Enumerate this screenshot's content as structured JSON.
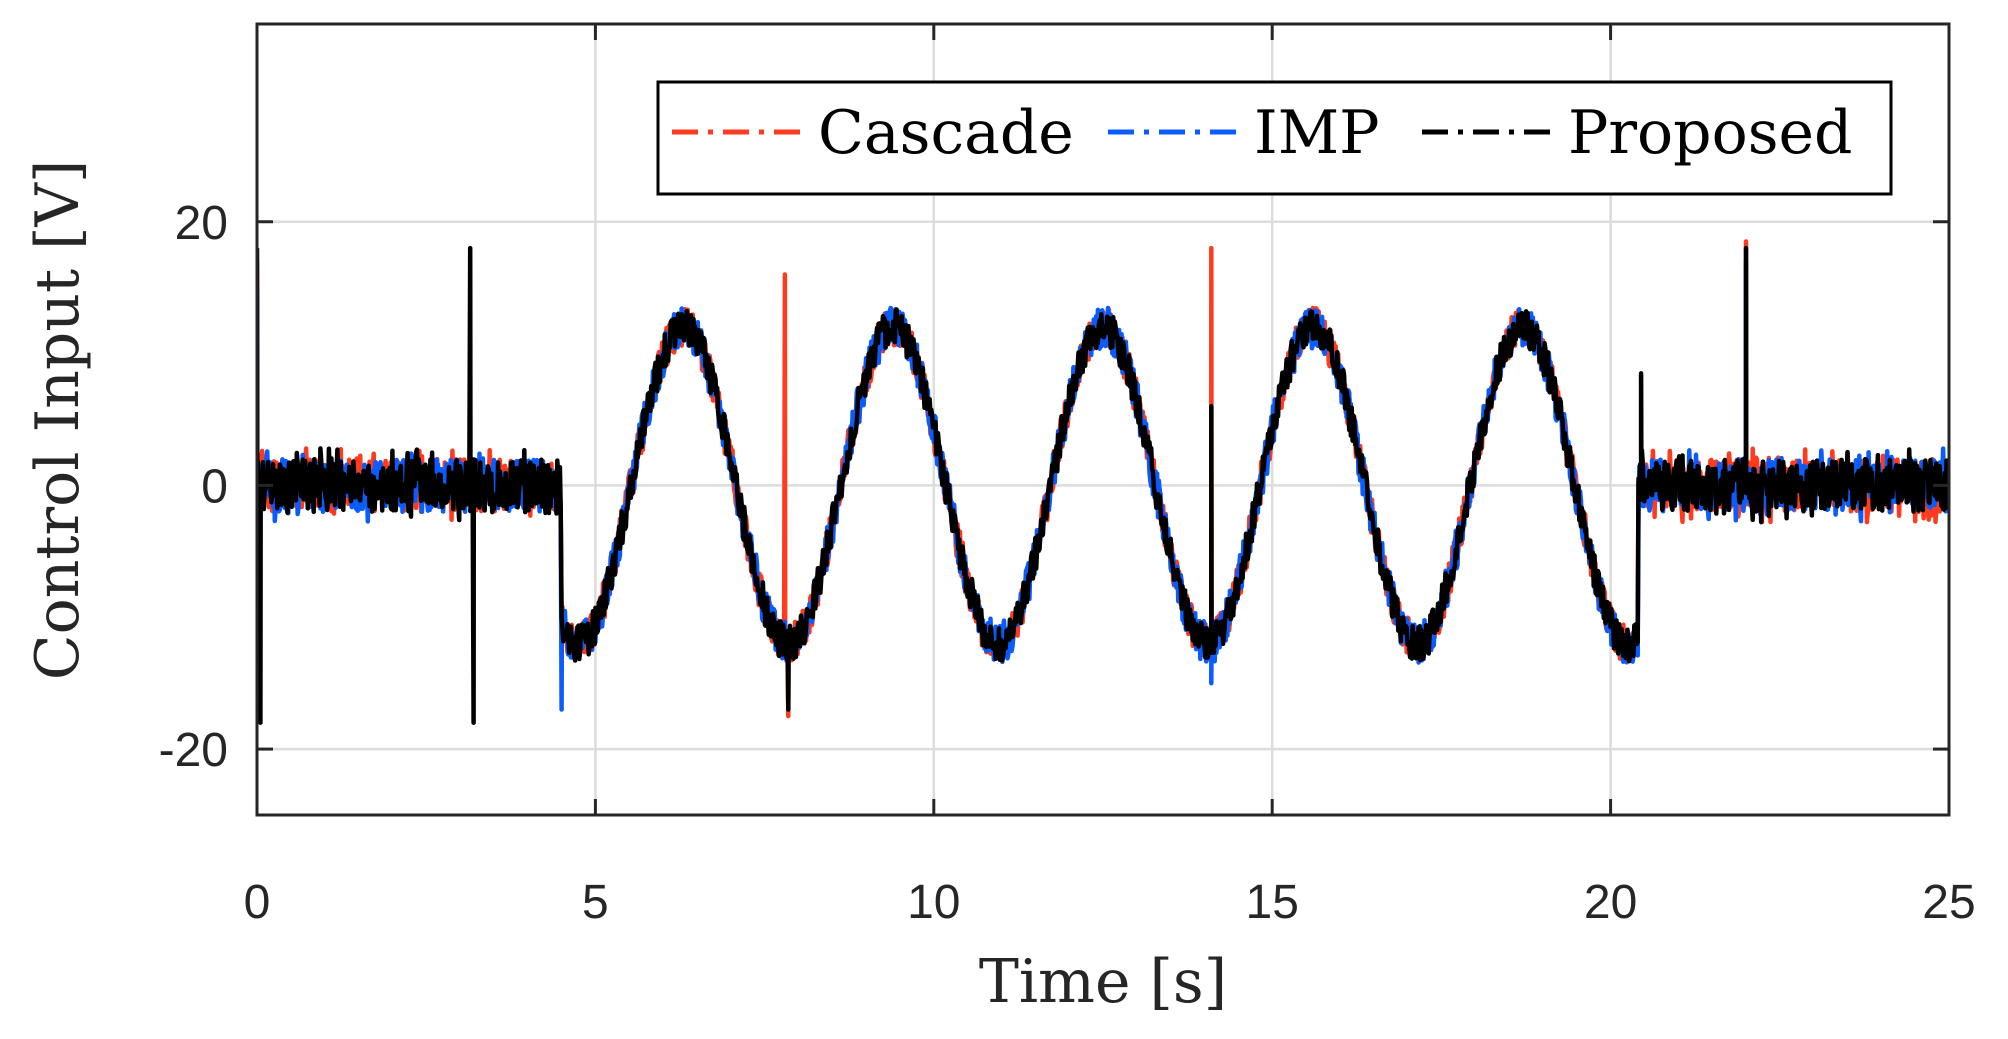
{
  "chart_data": {
    "type": "line",
    "title": "",
    "xlabel": "Time [s]",
    "ylabel": "Control Input [V]",
    "xlim": [
      0,
      25
    ],
    "ylim": [
      -25,
      35
    ],
    "xticks": [
      0,
      5,
      10,
      15,
      20,
      25
    ],
    "yticks": [
      -20,
      0,
      20
    ],
    "xtick_labels": [
      "0",
      "5",
      "10",
      "15",
      "20",
      "25"
    ],
    "ytick_labels": [
      "-20",
      "0",
      "20"
    ],
    "grid": true,
    "legend_position": "top-right",
    "series": [
      {
        "name": "Cascade",
        "color": "#ff3b1f",
        "line_style": "dash-dot",
        "description_free": true,
        "signal": {
          "rest_segments": [
            [
              0,
              4.5
            ],
            [
              20.4,
              25
            ]
          ],
          "rest_noise_amplitude": 2,
          "sine_segment": [
            4.5,
            20.4
          ],
          "sine_amplitude": 12,
          "sine_period": 3.1,
          "sine_peak_time": 6.3,
          "sine_band_width": 3,
          "spikes": [
            {
              "t": 0.0,
              "v": 17
            },
            {
              "t": 7.8,
              "v": 16
            },
            {
              "t": 7.85,
              "v": -17.5
            },
            {
              "t": 14.1,
              "v": 18
            },
            {
              "t": 22.0,
              "v": 18.5
            }
          ]
        }
      },
      {
        "name": "IMP",
        "color": "#0a5cff",
        "line_style": "dash-dot",
        "signal": {
          "rest_segments": [
            [
              0,
              4.5
            ],
            [
              20.4,
              25
            ]
          ],
          "rest_noise_amplitude": 2,
          "sine_segment": [
            4.5,
            20.4
          ],
          "sine_amplitude": 12,
          "sine_period": 3.1,
          "sine_peak_time": 6.3,
          "sine_band_width": 3.2,
          "spikes": [
            {
              "t": 0.0,
              "v": 15
            },
            {
              "t": 4.5,
              "v": -17
            },
            {
              "t": 14.1,
              "v": -15
            },
            {
              "t": 22.0,
              "v": 17
            }
          ]
        }
      },
      {
        "name": "Proposed",
        "color": "#000000",
        "line_style": "dash-dot",
        "signal": {
          "rest_segments": [
            [
              0,
              4.5
            ],
            [
              20.4,
              25
            ]
          ],
          "rest_noise_amplitude": 2,
          "sine_segment": [
            4.5,
            20.4
          ],
          "sine_amplitude": 12,
          "sine_period": 3.1,
          "sine_peak_time": 6.3,
          "sine_band_width": 2.8,
          "spikes": [
            {
              "t": 0.0,
              "v": 18
            },
            {
              "t": 0.05,
              "v": -18
            },
            {
              "t": 3.15,
              "v": 18
            },
            {
              "t": 3.2,
              "v": -18
            },
            {
              "t": 7.85,
              "v": -17
            },
            {
              "t": 14.1,
              "v": 6
            },
            {
              "t": 20.45,
              "v": 8.5
            },
            {
              "t": 22.0,
              "v": 18
            }
          ]
        }
      }
    ]
  }
}
